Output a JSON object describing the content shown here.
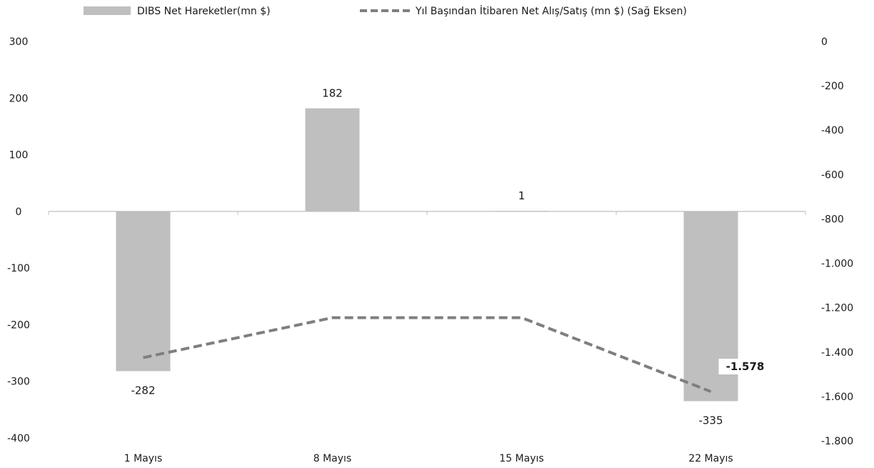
{
  "chart_data": {
    "type": "bar",
    "categories": [
      "1 Mayıs",
      "8 Mayıs",
      "15 Mayıs",
      "22 Mayıs"
    ],
    "series": [
      {
        "name": "DIBS Net Hareketler(mn $)",
        "type": "bar",
        "axis": "left",
        "values": [
          -282,
          182,
          1,
          -335
        ],
        "data_labels": [
          "-282",
          "182",
          "1",
          "-335"
        ],
        "color": "#bfbfbf"
      },
      {
        "name": "Yıl Başından İtibaren Net Alış/Satış (mn $) (Sağ Eksen)",
        "type": "line",
        "axis": "right",
        "style": "dashed",
        "values": [
          -1425,
          -1245,
          -1245,
          -1578
        ],
        "data_labels": [
          "",
          "",
          "",
          "-1.578"
        ],
        "color": "#7f7f7f"
      }
    ],
    "left_axis": {
      "min": -400,
      "max": 300,
      "ticks": [
        300,
        200,
        100,
        0,
        -100,
        -200,
        -300,
        -400
      ],
      "tick_labels": [
        "300",
        "200",
        "100",
        "0",
        "-100",
        "-200",
        "-300",
        "-400"
      ]
    },
    "right_axis": {
      "min": -1800,
      "max": 0,
      "ticks": [
        0,
        -200,
        -400,
        -600,
        -800,
        -1000,
        -1200,
        -1400,
        -1600,
        -1800
      ],
      "tick_labels": [
        "0",
        "-200",
        "-400",
        "-600",
        "-800",
        "-1.000",
        "-1.200",
        "-1.400",
        "-1.600",
        "-1.800"
      ]
    },
    "grid": false,
    "legend_position": "top"
  }
}
